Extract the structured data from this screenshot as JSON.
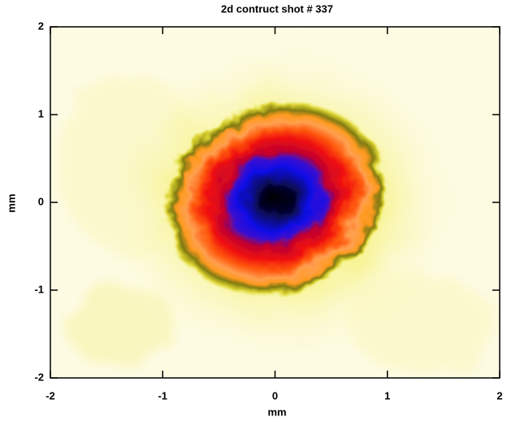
{
  "chart_data": {
    "type": "heatmap",
    "title": "2d contruct shot # 337",
    "xlabel": "mm",
    "ylabel": "mm",
    "xlim": [
      -2,
      2
    ],
    "ylim": [
      -2,
      2
    ],
    "xticks": [
      -2,
      -1,
      0,
      1,
      2
    ],
    "yticks": [
      -2,
      -1,
      0,
      1,
      2
    ]
  }
}
